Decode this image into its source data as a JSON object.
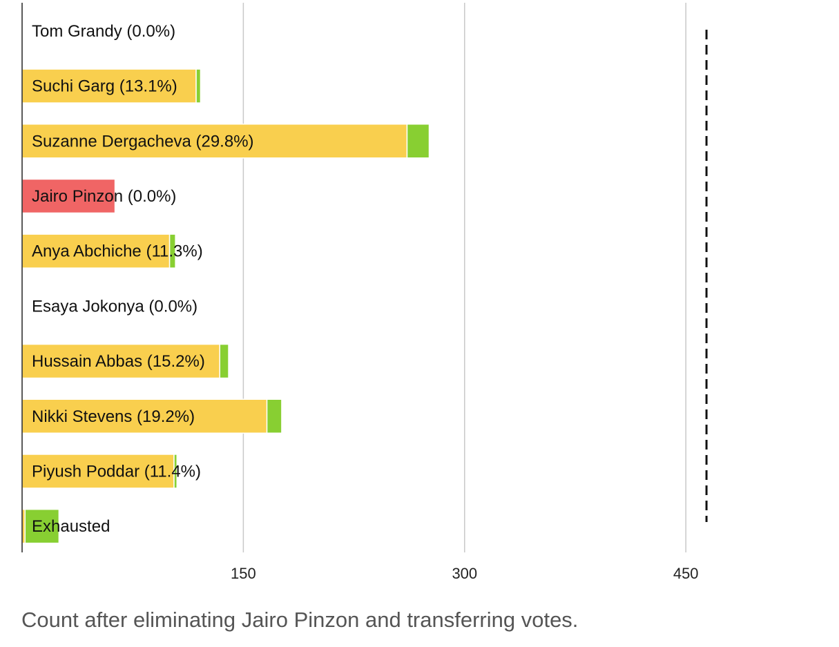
{
  "chart_data": {
    "type": "bar",
    "orientation": "horizontal",
    "stacked": true,
    "categories": [
      "Tom Grandy (0.0%)",
      "Suchi Garg (13.1%)",
      "Suzanne Dergacheva (29.8%)",
      "Jairo Pinzon (0.0%)",
      "Anya Abchiche (11.3%)",
      "Esaya Jokonya (0.0%)",
      "Hussain Abbas (15.2%)",
      "Nikki Stevens (19.2%)",
      "Piyush Poddar (11.4%)",
      "Exhausted"
    ],
    "series": [
      {
        "color": "#f9cf4e",
        "values": [
          0,
          118,
          261,
          0,
          100,
          0,
          134,
          166,
          103,
          2
        ]
      },
      {
        "color": "#88cf32",
        "values": [
          0,
          3,
          15,
          0,
          4,
          0,
          6,
          10,
          2,
          23
        ]
      },
      {
        "color": "#f06565",
        "values": [
          0,
          0,
          0,
          63,
          0,
          0,
          0,
          0,
          0,
          0
        ]
      }
    ],
    "xlim": [
      0,
      500
    ],
    "xticks": [
      150,
      300,
      450
    ],
    "threshold": 464,
    "grid": true,
    "title": "",
    "xlabel": "",
    "ylabel": ""
  },
  "caption": "Count after eliminating Jairo Pinzon and transferring votes."
}
